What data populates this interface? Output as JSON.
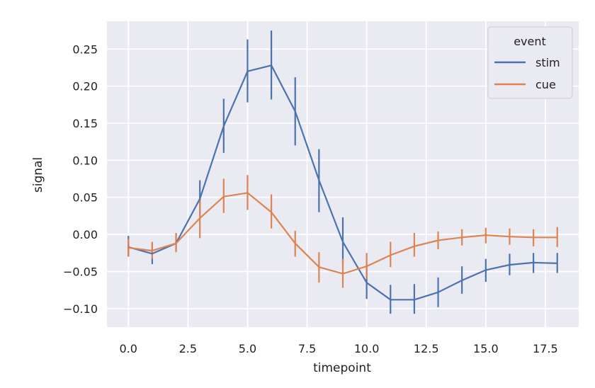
{
  "chart_data": {
    "type": "line",
    "xlabel": "timepoint",
    "ylabel": "signal",
    "xlim": [
      -0.9,
      18.9
    ],
    "ylim": [
      -0.125,
      0.2875
    ],
    "xticks": [
      0.0,
      2.5,
      5.0,
      7.5,
      10.0,
      12.5,
      15.0,
      17.5
    ],
    "xtick_labels": [
      "0.0",
      "2.5",
      "5.0",
      "7.5",
      "10.0",
      "12.5",
      "15.0",
      "17.5"
    ],
    "yticks": [
      -0.1,
      -0.05,
      0.0,
      0.05,
      0.1,
      0.15,
      0.2,
      0.25
    ],
    "ytick_labels": [
      "−0.10",
      "−0.05",
      "0.00",
      "0.05",
      "0.10",
      "0.15",
      "0.20",
      "0.25"
    ],
    "grid": true,
    "legend": {
      "title": "event",
      "placement": "top-right"
    },
    "x": [
      0,
      1,
      2,
      3,
      4,
      5,
      6,
      7,
      8,
      9,
      10,
      11,
      12,
      13,
      14,
      15,
      16,
      17,
      18
    ],
    "series": [
      {
        "name": "stim",
        "color": "#4C72B0",
        "values": [
          -0.017,
          -0.026,
          -0.012,
          0.048,
          0.146,
          0.22,
          0.228,
          0.166,
          0.073,
          -0.01,
          -0.065,
          -0.088,
          -0.088,
          -0.078,
          -0.062,
          -0.048,
          -0.041,
          -0.038,
          -0.039
        ],
        "err_low": [
          -0.03,
          -0.04,
          -0.022,
          0.025,
          0.11,
          0.178,
          0.182,
          0.12,
          0.03,
          -0.04,
          -0.087,
          -0.107,
          -0.107,
          -0.098,
          -0.08,
          -0.064,
          -0.055,
          -0.052,
          -0.052
        ],
        "err_high": [
          -0.002,
          -0.012,
          0.001,
          0.073,
          0.183,
          0.263,
          0.275,
          0.212,
          0.115,
          0.023,
          -0.04,
          -0.068,
          -0.067,
          -0.058,
          -0.043,
          -0.033,
          -0.026,
          -0.025,
          -0.025
        ]
      },
      {
        "name": "cue",
        "color": "#DD8452",
        "values": [
          -0.018,
          -0.022,
          -0.012,
          0.022,
          0.051,
          0.056,
          0.03,
          -0.012,
          -0.044,
          -0.053,
          -0.043,
          -0.028,
          -0.016,
          -0.008,
          -0.004,
          -0.001,
          -0.003,
          -0.004,
          -0.004
        ],
        "err_low": [
          -0.03,
          -0.033,
          -0.024,
          -0.005,
          0.029,
          0.033,
          0.008,
          -0.03,
          -0.065,
          -0.072,
          -0.06,
          -0.044,
          -0.03,
          -0.02,
          -0.015,
          -0.012,
          -0.014,
          -0.016,
          -0.017
        ],
        "err_high": [
          -0.006,
          -0.01,
          0.002,
          0.048,
          0.075,
          0.08,
          0.054,
          0.005,
          -0.024,
          -0.033,
          -0.025,
          -0.01,
          0.002,
          0.004,
          0.007,
          0.009,
          0.008,
          0.007,
          0.01
        ]
      }
    ]
  }
}
